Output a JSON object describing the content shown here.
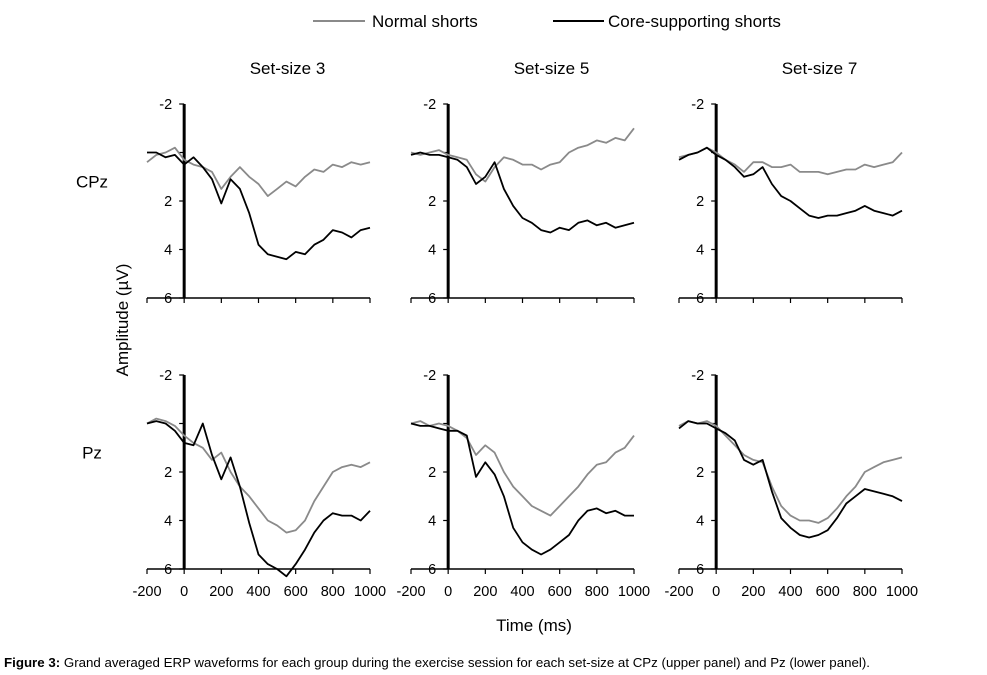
{
  "legend": {
    "position": "top-center",
    "items": [
      {
        "label": "Normal shorts",
        "color": "#8a8a8a"
      },
      {
        "label": "Core-supporting shorts",
        "color": "#000000"
      }
    ]
  },
  "y_axis_title": "Amplitude (µV)",
  "x_axis_title": "Time (ms)",
  "caption": {
    "label": "Figure 3:",
    "text": " Grand averaged ERP waveforms for each group during the exercise session for each set-size at CPz (upper panel) and Pz (lower panel)."
  },
  "chart_data": {
    "type": "line",
    "layout": "2x3 grid; rows = electrode sites, columns = set-sizes",
    "columns": [
      "Set-size 3",
      "Set-size 5",
      "Set-size 7"
    ],
    "rows": [
      "CPz",
      "Pz"
    ],
    "xlim": [
      -200,
      1000
    ],
    "x_ticks": [
      -200,
      0,
      200,
      400,
      600,
      800,
      1000
    ],
    "x_tick_labels": [
      "-200",
      "0",
      "200",
      "400",
      "600",
      "800",
      "1000"
    ],
    "ylim": [
      -2,
      6
    ],
    "y_inverted": true,
    "y_ticks": [
      -2,
      0,
      2,
      4,
      6
    ],
    "y_tick_labels": [
      "-2",
      "",
      "2",
      "4",
      "6"
    ],
    "series_names": [
      "Normal shorts",
      "Core-supporting shorts"
    ],
    "series_colors": [
      "#8a8a8a",
      "#000000"
    ],
    "x": [
      -200,
      -150,
      -100,
      -50,
      0,
      50,
      100,
      150,
      200,
      250,
      300,
      350,
      400,
      450,
      500,
      550,
      600,
      650,
      700,
      750,
      800,
      850,
      900,
      950,
      1000
    ],
    "panels": [
      {
        "row": "CPz",
        "column": "Set-size 3",
        "series": [
          {
            "name": "Normal shorts",
            "values": [
              0.4,
              0.1,
              0.0,
              -0.2,
              0.3,
              0.5,
              0.6,
              0.8,
              1.5,
              1.0,
              0.6,
              1.0,
              1.3,
              1.8,
              1.5,
              1.2,
              1.4,
              1.0,
              0.7,
              0.8,
              0.5,
              0.6,
              0.4,
              0.5,
              0.4
            ]
          },
          {
            "name": "Core-supporting shorts",
            "values": [
              0.0,
              0.0,
              0.2,
              0.1,
              0.5,
              0.2,
              0.6,
              1.1,
              2.1,
              1.1,
              1.5,
              2.5,
              3.8,
              4.2,
              4.3,
              4.4,
              4.1,
              4.2,
              3.8,
              3.6,
              3.2,
              3.3,
              3.5,
              3.2,
              3.1
            ]
          }
        ]
      },
      {
        "row": "CPz",
        "column": "Set-size 5",
        "series": [
          {
            "name": "Normal shorts",
            "values": [
              0.0,
              0.1,
              0.0,
              -0.1,
              0.1,
              0.2,
              0.3,
              0.9,
              1.2,
              0.6,
              0.2,
              0.3,
              0.5,
              0.5,
              0.7,
              0.5,
              0.4,
              0.0,
              -0.2,
              -0.3,
              -0.5,
              -0.4,
              -0.6,
              -0.5,
              -1.0
            ]
          },
          {
            "name": "Core-supporting shorts",
            "values": [
              0.1,
              0.0,
              0.1,
              0.1,
              0.2,
              0.3,
              0.6,
              1.3,
              1.0,
              0.4,
              1.5,
              2.2,
              2.7,
              2.9,
              3.2,
              3.3,
              3.1,
              3.2,
              2.9,
              2.8,
              3.0,
              2.9,
              3.1,
              3.0,
              2.9
            ]
          }
        ]
      },
      {
        "row": "CPz",
        "column": "Set-size 7",
        "series": [
          {
            "name": "Normal shorts",
            "values": [
              0.2,
              0.1,
              0.0,
              -0.2,
              0.0,
              0.3,
              0.5,
              0.8,
              0.4,
              0.4,
              0.6,
              0.6,
              0.5,
              0.8,
              0.8,
              0.8,
              0.9,
              0.8,
              0.7,
              0.7,
              0.5,
              0.6,
              0.5,
              0.4,
              0.0
            ]
          },
          {
            "name": "Core-supporting shorts",
            "values": [
              0.3,
              0.1,
              0.0,
              -0.2,
              0.1,
              0.3,
              0.6,
              1.0,
              0.9,
              0.6,
              1.3,
              1.8,
              2.0,
              2.3,
              2.6,
              2.7,
              2.6,
              2.6,
              2.5,
              2.4,
              2.2,
              2.4,
              2.5,
              2.6,
              2.4
            ]
          }
        ]
      },
      {
        "row": "Pz",
        "column": "Set-size 3",
        "series": [
          {
            "name": "Normal shorts",
            "values": [
              0.0,
              -0.2,
              -0.1,
              0.1,
              0.5,
              0.8,
              1.0,
              1.5,
              1.2,
              2.0,
              2.6,
              3.0,
              3.5,
              4.0,
              4.2,
              4.5,
              4.4,
              4.0,
              3.2,
              2.6,
              2.0,
              1.8,
              1.7,
              1.8,
              1.6
            ]
          },
          {
            "name": "Core-supporting shorts",
            "values": [
              0.0,
              -0.1,
              0.0,
              0.3,
              0.8,
              0.9,
              0.0,
              1.3,
              2.3,
              1.4,
              2.6,
              4.1,
              5.4,
              5.8,
              6.0,
              6.3,
              5.8,
              5.2,
              4.5,
              4.0,
              3.7,
              3.8,
              3.8,
              4.0,
              3.6
            ]
          }
        ]
      },
      {
        "row": "Pz",
        "column": "Set-size 5",
        "series": [
          {
            "name": "Normal shorts",
            "values": [
              0.0,
              -0.1,
              0.1,
              0.0,
              0.1,
              0.3,
              0.6,
              1.3,
              0.9,
              1.2,
              2.0,
              2.6,
              3.0,
              3.4,
              3.6,
              3.8,
              3.4,
              3.0,
              2.6,
              2.1,
              1.7,
              1.6,
              1.2,
              1.0,
              0.5
            ]
          },
          {
            "name": "Core-supporting shorts",
            "values": [
              0.0,
              0.1,
              0.1,
              0.2,
              0.3,
              0.3,
              0.5,
              2.2,
              1.6,
              2.1,
              3.0,
              4.3,
              4.9,
              5.2,
              5.4,
              5.2,
              4.9,
              4.6,
              4.0,
              3.6,
              3.5,
              3.7,
              3.6,
              3.8,
              3.8
            ]
          }
        ]
      },
      {
        "row": "Pz",
        "column": "Set-size 7",
        "series": [
          {
            "name": "Normal shorts",
            "values": [
              0.1,
              -0.1,
              0.0,
              -0.1,
              0.1,
              0.5,
              0.9,
              1.3,
              1.5,
              1.6,
              2.6,
              3.4,
              3.8,
              4.0,
              4.0,
              4.1,
              3.9,
              3.5,
              3.0,
              2.6,
              2.0,
              1.8,
              1.6,
              1.5,
              1.4
            ]
          },
          {
            "name": "Core-supporting shorts",
            "values": [
              0.2,
              -0.1,
              0.0,
              0.0,
              0.2,
              0.4,
              0.7,
              1.5,
              1.7,
              1.5,
              2.8,
              3.9,
              4.3,
              4.6,
              4.7,
              4.6,
              4.4,
              3.9,
              3.3,
              3.0,
              2.7,
              2.8,
              2.9,
              3.0,
              3.2
            ]
          }
        ]
      }
    ]
  }
}
